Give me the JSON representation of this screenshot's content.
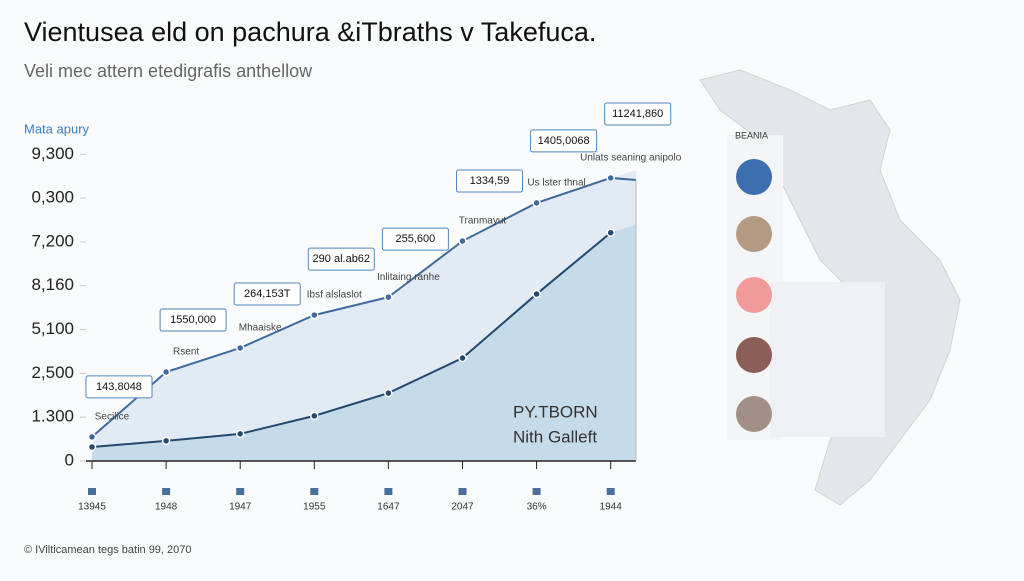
{
  "chart_data": {
    "type": "line",
    "title": "Vientusea eld on pachura &iTbraths v Takefuca.",
    "subtitle": "Veli mec attern etedigrafis anthellow",
    "y_label": "Mata apury",
    "footer": "© IVilticamean tegs batin 99, 2070",
    "map_label": "BEANIA",
    "categories": [
      "13945",
      "1948",
      "1947",
      "1955",
      "1647",
      "2047",
      "36%",
      "1944"
    ],
    "ylim": [
      0,
      7.6
    ],
    "yticks": [
      {
        "value": 0,
        "label": "0"
      },
      {
        "value": 1,
        "label": "1.300"
      },
      {
        "value": 2,
        "label": "2,500"
      },
      {
        "value": 3,
        "label": "5,100"
      },
      {
        "value": 4,
        "label": "8,160"
      },
      {
        "value": 5,
        "label": "7,200"
      },
      {
        "value": 6,
        "label": "0,300"
      },
      {
        "value": 7,
        "label": "9,300"
      }
    ],
    "series": [
      {
        "name": "PY.TBORN",
        "color": "#3e6a9e",
        "area_color": "#e2eaf3",
        "values": [
          0.55,
          2.03,
          2.58,
          3.33,
          3.74,
          5.02,
          5.89,
          6.46
        ]
      },
      {
        "name": "Nith Galleft",
        "color": "#23496e",
        "area_color": "#c6dbea",
        "values": [
          0.32,
          0.46,
          0.62,
          1.03,
          1.55,
          2.35,
          3.81,
          5.21
        ]
      }
    ],
    "annotations": [
      {
        "value": "143,8048",
        "note": "Secilice"
      },
      {
        "value": "1550,000",
        "note": "Rsent"
      },
      {
        "value": "264,153T",
        "note": "Mhaaiske"
      },
      {
        "value": "290 al.ab62",
        "note": "Ibsf alslaslot"
      },
      {
        "value": "255,600",
        "note": "Inlitaing ranhe"
      },
      {
        "value": "1334,59",
        "note": "Tranmayut"
      },
      {
        "value": "1405,0068",
        "note": "Us lster thnal"
      },
      {
        "value": "11241,860",
        "note": "Unlats seaning anipolo"
      }
    ]
  }
}
